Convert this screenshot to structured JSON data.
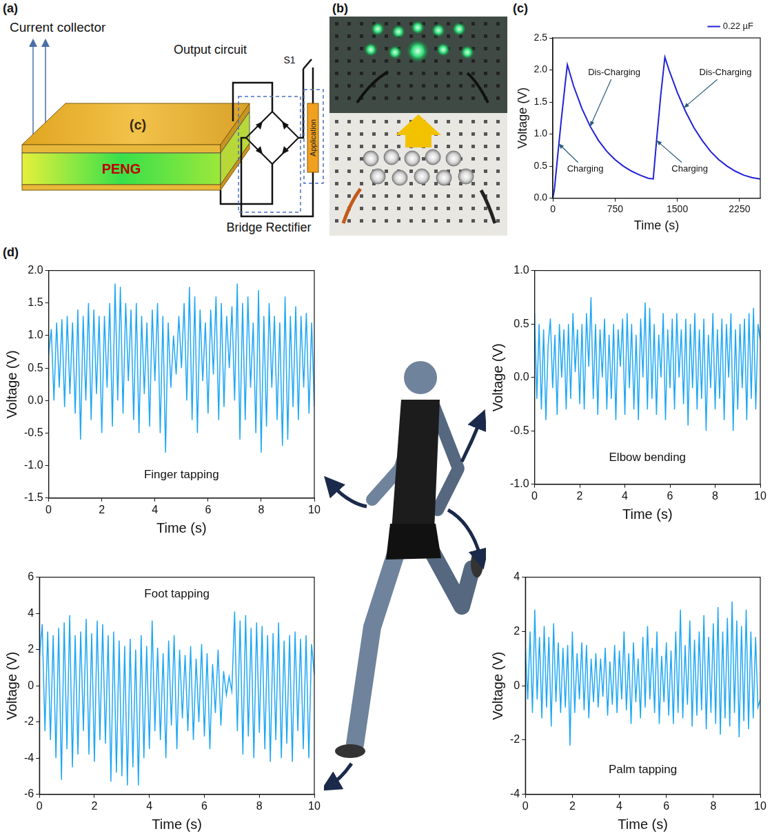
{
  "panel_labels": [
    "(a)",
    "(b)",
    "(c)",
    "(d)"
  ],
  "diagram": {
    "current_collector": "Current collector",
    "output_circuit": "Output circuit",
    "switch": "S1",
    "top_layer": "(c)",
    "middle_layer": "PENG",
    "rectifier": "Bridge Rectifier",
    "load": "Application"
  },
  "chart_data": [
    {
      "type": "line",
      "x_label": "Time (s)",
      "y_label": "Voltage (V)",
      "x": [
        0,
        20,
        50,
        100,
        150,
        175,
        250,
        350,
        450,
        550,
        650,
        750,
        850,
        950,
        1050,
        1150,
        1210,
        1250,
        1300,
        1350,
        1400,
        1500,
        1600,
        1700,
        1800,
        1900,
        2000,
        2100,
        2200,
        2300,
        2400,
        2500
      ],
      "series": [
        {
          "name": "0.22 µF",
          "color": "#2020d8",
          "values": [
            0,
            0.15,
            0.55,
            1.2,
            1.8,
            2.08,
            1.75,
            1.4,
            1.12,
            0.9,
            0.73,
            0.6,
            0.5,
            0.42,
            0.36,
            0.31,
            0.3,
            0.9,
            1.6,
            2.2,
            2.0,
            1.65,
            1.35,
            1.1,
            0.9,
            0.73,
            0.6,
            0.5,
            0.42,
            0.36,
            0.32,
            0.3
          ]
        }
      ],
      "xlim": [
        0,
        2500
      ],
      "xticks": [
        0,
        750,
        1500,
        2250
      ],
      "ylim": [
        0,
        2.5
      ],
      "yticks": [
        {
          "value": 0,
          "label": "0.0"
        },
        0.5,
        {
          "value": 1,
          "label": "1.0"
        },
        1.5,
        {
          "value": 2,
          "label": "2.0"
        },
        2.5
      ],
      "grid": false,
      "legend": "top-right",
      "annotations": [
        {
          "text": "Charging",
          "x": 390,
          "y": 0.45,
          "arrow_x": 70,
          "arrow_y": 0.85
        },
        {
          "text": "Dis-Charging",
          "x": 740,
          "y": 1.96,
          "arrow_x": 450,
          "arrow_y": 1.12
        },
        {
          "text": "Charging",
          "x": 1650,
          "y": 0.45,
          "arrow_x": 1250,
          "arrow_y": 0.9
        },
        {
          "text": "Dis-Charging",
          "x": 2080,
          "y": 1.96,
          "arrow_x": 1580,
          "arrow_y": 1.41
        }
      ]
    },
    {
      "type": "line",
      "title": "Finger tapping",
      "x_label": "Time (s)",
      "y_label": "Voltage (V)",
      "x": [
        0,
        0.1,
        0.2,
        0.3,
        0.4,
        0.5,
        0.6,
        0.7,
        0.8,
        0.9,
        1,
        1.1,
        1.2,
        1.3,
        1.4,
        1.5,
        1.6,
        1.7,
        1.8,
        1.9,
        2,
        2.1,
        2.2,
        2.3,
        2.4,
        2.5,
        2.6,
        2.7,
        2.8,
        2.9,
        3,
        3.1,
        3.2,
        3.3,
        3.4,
        3.5,
        3.6,
        3.7,
        3.8,
        3.9,
        4,
        4.1,
        4.2,
        4.3,
        4.4,
        4.5,
        4.6,
        4.7,
        4.8,
        4.9,
        5,
        5.1,
        5.2,
        5.3,
        5.4,
        5.5,
        5.6,
        5.7,
        5.8,
        5.9,
        6,
        6.1,
        6.2,
        6.3,
        6.4,
        6.5,
        6.6,
        6.7,
        6.8,
        6.9,
        7,
        7.1,
        7.2,
        7.3,
        7.4,
        7.5,
        7.6,
        7.7,
        7.8,
        7.9,
        8,
        8.1,
        8.2,
        8.3,
        8.4,
        8.5,
        8.6,
        8.7,
        8.8,
        8.9,
        9,
        9.1,
        9.2,
        9.3,
        9.4,
        9.5,
        9.6,
        9.7,
        9.8,
        9.9,
        10
      ],
      "series": [
        {
          "color": "#1ea7f5",
          "values": [
            0.7,
            1.1,
            0.0,
            1.2,
            0.2,
            1.25,
            -0.1,
            1.3,
            0.1,
            1.2,
            -0.2,
            1.4,
            -0.6,
            1.3,
            0.0,
            1.5,
            -0.3,
            1.4,
            0.1,
            1.3,
            -0.5,
            1.3,
            0.2,
            1.5,
            -0.4,
            1.8,
            0.0,
            1.75,
            -0.2,
            1.5,
            0.3,
            1.4,
            -0.3,
            1.5,
            -0.5,
            1.3,
            0.1,
            1.2,
            -0.4,
            1.4,
            0.3,
            1.5,
            -0.5,
            1.3,
            -0.8,
            1.2,
            0.2,
            1.0,
            0.4,
            1.3,
            0.5,
            1.5,
            0.0,
            1.75,
            -0.3,
            1.6,
            -0.5,
            1.4,
            0.3,
            1.2,
            -0.2,
            1.4,
            0.4,
            1.6,
            -0.3,
            1.5,
            -0.1,
            1.3,
            0.5,
            1.45,
            0.0,
            1.8,
            -0.6,
            1.5,
            -0.3,
            1.6,
            0.2,
            1.2,
            -0.5,
            1.7,
            -0.8,
            1.3,
            -0.4,
            1.5,
            0.2,
            1.3,
            -0.3,
            1.2,
            -0.7,
            1.6,
            -0.6,
            1.3,
            -0.1,
            1.45,
            -0.3,
            1.3,
            0.2,
            1.35,
            -0.2,
            1.2,
            -0.1
          ]
        }
      ],
      "xlim": [
        0,
        10
      ],
      "xticks": [
        0,
        2,
        4,
        6,
        8,
        10
      ],
      "ylim": [
        -1.5,
        2
      ],
      "yticks": [
        -1.5,
        {
          "value": -1,
          "label": "-1.0"
        },
        -0.5,
        {
          "value": 0,
          "label": "0.0"
        },
        0.5,
        {
          "value": 1,
          "label": "1.0"
        },
        1.5,
        {
          "value": 2,
          "label": "2.0"
        }
      ],
      "grid": false
    },
    {
      "type": "line",
      "title": "Elbow bending",
      "x_label": "Time (s)",
      "y_label": "Voltage (V)",
      "x": [
        0,
        0.1,
        0.2,
        0.3,
        0.4,
        0.5,
        0.6,
        0.7,
        0.8,
        0.9,
        1,
        1.1,
        1.2,
        1.3,
        1.4,
        1.5,
        1.6,
        1.7,
        1.8,
        1.9,
        2,
        2.1,
        2.2,
        2.3,
        2.4,
        2.5,
        2.6,
        2.7,
        2.8,
        2.9,
        3,
        3.1,
        3.2,
        3.3,
        3.4,
        3.5,
        3.6,
        3.7,
        3.8,
        3.9,
        4,
        4.1,
        4.2,
        4.3,
        4.4,
        4.5,
        4.6,
        4.7,
        4.8,
        4.9,
        5,
        5.1,
        5.2,
        5.3,
        5.4,
        5.5,
        5.6,
        5.7,
        5.8,
        5.9,
        6,
        6.1,
        6.2,
        6.3,
        6.4,
        6.5,
        6.6,
        6.7,
        6.8,
        6.9,
        7,
        7.1,
        7.2,
        7.3,
        7.4,
        7.5,
        7.6,
        7.7,
        7.8,
        7.9,
        8,
        8.1,
        8.2,
        8.3,
        8.4,
        8.5,
        8.6,
        8.7,
        8.8,
        8.9,
        9,
        9.1,
        9.2,
        9.3,
        9.4,
        9.5,
        9.6,
        9.7,
        9.8,
        9.9,
        10
      ],
      "series": [
        {
          "color": "#1ea7f5",
          "values": [
            0.6,
            -0.2,
            0.5,
            -0.3,
            0.45,
            -0.4,
            0.3,
            0.55,
            -0.1,
            0.4,
            -0.35,
            0.5,
            0.0,
            0.45,
            -0.3,
            0.5,
            -0.2,
            0.6,
            0.05,
            0.45,
            -0.25,
            0.5,
            -0.3,
            0.6,
            0.1,
            0.75,
            -0.2,
            0.5,
            -0.35,
            0.45,
            0.0,
            0.55,
            -0.3,
            0.4,
            -0.2,
            0.5,
            -0.4,
            0.45,
            0.1,
            0.55,
            -0.35,
            0.6,
            -0.1,
            0.5,
            -0.3,
            0.4,
            -0.4,
            0.55,
            0.0,
            0.7,
            -0.3,
            0.65,
            -0.2,
            0.5,
            -0.35,
            0.4,
            0.0,
            0.6,
            -0.4,
            0.45,
            -0.1,
            0.55,
            -0.3,
            0.6,
            0.0,
            0.45,
            -0.25,
            0.55,
            -0.45,
            0.5,
            -0.1,
            0.6,
            -0.3,
            0.45,
            -0.2,
            0.55,
            -0.5,
            0.4,
            -0.1,
            0.6,
            -0.3,
            0.45,
            -0.2,
            0.55,
            -0.4,
            0.5,
            0.0,
            0.6,
            -0.5,
            0.45,
            -0.3,
            0.5,
            -0.1,
            0.55,
            -0.4,
            0.6,
            -0.2,
            0.65,
            -0.3,
            0.5,
            0.35
          ]
        }
      ],
      "xlim": [
        0,
        10
      ],
      "xticks": [
        0,
        2,
        4,
        6,
        8,
        10
      ],
      "ylim": [
        -1,
        1
      ],
      "yticks": [
        {
          "value": -1,
          "label": "-1.0"
        },
        -0.5,
        {
          "value": 0,
          "label": "0.0"
        },
        0.5,
        {
          "value": 1,
          "label": "1.0"
        }
      ],
      "grid": false
    },
    {
      "type": "line",
      "title": "Foot tapping",
      "x_label": "Time (s)",
      "y_label": "Voltage (V)",
      "x": [
        0,
        0.1,
        0.2,
        0.3,
        0.4,
        0.5,
        0.6,
        0.7,
        0.8,
        0.9,
        1,
        1.1,
        1.2,
        1.3,
        1.4,
        1.5,
        1.6,
        1.7,
        1.8,
        1.9,
        2,
        2.1,
        2.2,
        2.3,
        2.4,
        2.5,
        2.6,
        2.7,
        2.8,
        2.9,
        3,
        3.1,
        3.2,
        3.3,
        3.4,
        3.5,
        3.6,
        3.7,
        3.8,
        3.9,
        4,
        4.1,
        4.2,
        4.3,
        4.4,
        4.5,
        4.6,
        4.7,
        4.8,
        4.9,
        5,
        5.1,
        5.2,
        5.3,
        5.4,
        5.5,
        5.6,
        5.7,
        5.8,
        5.9,
        6,
        6.1,
        6.2,
        6.3,
        6.4,
        6.5,
        6.6,
        6.7,
        6.8,
        6.9,
        7,
        7.1,
        7.2,
        7.3,
        7.4,
        7.5,
        7.6,
        7.7,
        7.8,
        7.9,
        8,
        8.1,
        8.2,
        8.3,
        8.4,
        8.5,
        8.6,
        8.7,
        8.8,
        8.9,
        9,
        9.1,
        9.2,
        9.3,
        9.4,
        9.5,
        9.6,
        9.7,
        9.8,
        9.9,
        10
      ],
      "series": [
        {
          "color": "#1ea7f5",
          "values": [
            1.5,
            3.4,
            -2.5,
            3.0,
            -3.0,
            2.8,
            -4.0,
            3.2,
            -5.2,
            3.5,
            -3.5,
            3.9,
            -4.5,
            2.8,
            -3.8,
            3.0,
            -2.5,
            3.7,
            -3.8,
            2.9,
            -4.2,
            3.6,
            -3.0,
            3.4,
            -3.2,
            2.8,
            -5.3,
            3.0,
            -4.8,
            2.5,
            -5.0,
            2.2,
            -5.5,
            2.6,
            -4.5,
            2.0,
            -5.5,
            2.8,
            -4.0,
            2.2,
            -3.5,
            3.6,
            -2.5,
            2.1,
            -3.0,
            1.8,
            -4.0,
            2.5,
            -2.2,
            2.8,
            -3.5,
            2.0,
            -1.8,
            1.7,
            -2.5,
            2.2,
            -3.0,
            1.5,
            -2.0,
            2.3,
            -2.8,
            1.8,
            -3.5,
            1.2,
            -1.5,
            2.0,
            -2.2,
            0.8,
            -0.5,
            0.5,
            -0.3,
            4.1,
            -2.5,
            3.6,
            -3.8,
            3.9,
            -2.8,
            3.2,
            -4.0,
            3.5,
            -2.6,
            3.3,
            -3.5,
            2.8,
            -4.2,
            2.9,
            -3.0,
            3.5,
            -4.0,
            2.5,
            -3.2,
            2.8,
            -4.2,
            3.0,
            -2.5,
            2.6,
            -3.5,
            2.8,
            -4.0,
            2.3,
            0.6
          ]
        }
      ],
      "xlim": [
        0,
        10
      ],
      "xticks": [
        0,
        2,
        4,
        6,
        8,
        10
      ],
      "ylim": [
        -6,
        6
      ],
      "yticks": [
        -6,
        -4,
        -2,
        0,
        2,
        4,
        6
      ],
      "grid": false
    },
    {
      "type": "line",
      "title": "Palm tapping",
      "x_label": "Time (s)",
      "y_label": "Voltage (V)",
      "x": [
        0,
        0.1,
        0.2,
        0.3,
        0.4,
        0.5,
        0.6,
        0.7,
        0.8,
        0.9,
        1,
        1.1,
        1.2,
        1.3,
        1.4,
        1.5,
        1.6,
        1.7,
        1.8,
        1.9,
        2,
        2.1,
        2.2,
        2.3,
        2.4,
        2.5,
        2.6,
        2.7,
        2.8,
        2.9,
        3,
        3.1,
        3.2,
        3.3,
        3.4,
        3.5,
        3.6,
        3.7,
        3.8,
        3.9,
        4,
        4.1,
        4.2,
        4.3,
        4.4,
        4.5,
        4.6,
        4.7,
        4.8,
        4.9,
        5,
        5.1,
        5.2,
        5.3,
        5.4,
        5.5,
        5.6,
        5.7,
        5.8,
        5.9,
        6,
        6.1,
        6.2,
        6.3,
        6.4,
        6.5,
        6.6,
        6.7,
        6.8,
        6.9,
        7,
        7.1,
        7.2,
        7.3,
        7.4,
        7.5,
        7.6,
        7.7,
        7.8,
        7.9,
        8,
        8.1,
        8.2,
        8.3,
        8.4,
        8.5,
        8.6,
        8.7,
        8.8,
        8.9,
        9,
        9.1,
        9.2,
        9.3,
        9.4,
        9.5,
        9.6,
        9.7,
        9.8,
        9.9,
        10
      ],
      "series": [
        {
          "color": "#1ea7f5",
          "values": [
            1.5,
            -0.5,
            2.0,
            -1.0,
            2.8,
            -0.5,
            1.8,
            -1.2,
            2.2,
            -0.8,
            1.8,
            -1.5,
            2.3,
            -0.6,
            1.6,
            -1.0,
            1.4,
            -0.8,
            1.5,
            -2.2,
            2.0,
            -1.0,
            1.2,
            -0.5,
            1.6,
            -0.9,
            1.5,
            -1.2,
            1.0,
            -0.6,
            1.2,
            -0.8,
            1.0,
            -0.4,
            1.4,
            -1.1,
            0.9,
            -0.7,
            1.5,
            -1.0,
            1.3,
            -0.5,
            2.0,
            -0.9,
            1.2,
            -1.4,
            1.6,
            -0.6,
            1.0,
            -1.2,
            1.8,
            -0.8,
            2.2,
            -0.5,
            1.4,
            -1.0,
            2.0,
            -1.4,
            1.1,
            -0.6,
            1.6,
            -1.1,
            1.3,
            -1.4,
            2.0,
            -1.0,
            2.8,
            -1.2,
            1.5,
            -0.7,
            2.4,
            -1.5,
            1.7,
            -1.1,
            2.0,
            -0.9,
            2.6,
            -1.6,
            1.8,
            -1.0,
            2.3,
            -1.4,
            2.9,
            -1.8,
            2.0,
            -1.2,
            2.5,
            -1.5,
            3.1,
            -1.0,
            2.4,
            -1.9,
            2.2,
            -1.3,
            2.8,
            -1.6,
            2.0,
            -1.2,
            1.8,
            -0.8,
            -0.5
          ]
        }
      ],
      "xlim": [
        0,
        10
      ],
      "xticks": [
        0,
        2,
        4,
        6,
        8,
        10
      ],
      "ylim": [
        -4,
        4
      ],
      "yticks": [
        -4,
        -2,
        0,
        2,
        4
      ],
      "grid": false
    }
  ]
}
